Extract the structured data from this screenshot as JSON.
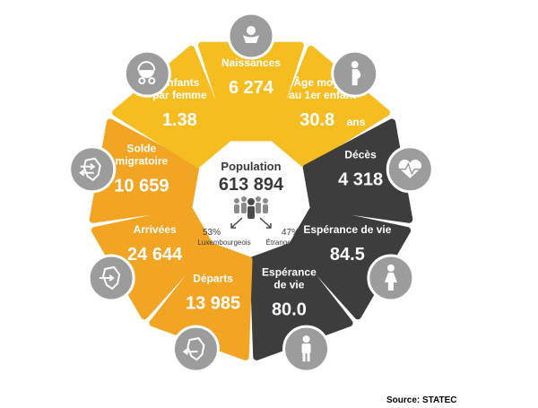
{
  "colors": {
    "yellow": "#f5bd1f",
    "orange": "#f2a423",
    "dark": "#3d3d3d",
    "icon_gray": "#9c9c9c"
  },
  "center": {
    "title": "Population",
    "value": "613 894",
    "left_pct": "53%",
    "left_label": "Luxembourgeois",
    "right_pct": "47%",
    "right_label": "Étrangers",
    "icon": "crowd-icon"
  },
  "segments": [
    {
      "id": "naissances",
      "label_lines": [
        "Naissances"
      ],
      "value": "6 274",
      "unit": "",
      "color": "yellow",
      "icon": "baby-icon"
    },
    {
      "id": "age-moyen",
      "label_lines": [
        "Âge moyen",
        "au 1er enfant"
      ],
      "value": "30.8",
      "unit": "ans",
      "color": "yellow",
      "icon": "pregnant-woman-icon"
    },
    {
      "id": "deces",
      "label_lines": [
        "Décès"
      ],
      "value": "4 318",
      "unit": "",
      "color": "dark",
      "icon": "heartbeat-icon"
    },
    {
      "id": "esperance-femmes",
      "label_lines": [
        "Espérance de vie"
      ],
      "value": "84.5",
      "unit": "",
      "color": "dark",
      "icon": "woman-icon"
    },
    {
      "id": "esperance-hommes",
      "label_lines": [
        "Espérance",
        "de vie"
      ],
      "value": "80.0",
      "unit": "",
      "color": "dark",
      "icon": "man-icon"
    },
    {
      "id": "departs",
      "label_lines": [
        "Départs"
      ],
      "value": "13 985",
      "unit": "",
      "color": "orange",
      "icon": "country-arrow-out-icon"
    },
    {
      "id": "arrivees",
      "label_lines": [
        "Arrivées"
      ],
      "value": "24 644",
      "unit": "",
      "color": "orange",
      "icon": "country-arrow-in-icon"
    },
    {
      "id": "solde-migratoire",
      "label_lines": [
        "Solde",
        "migratoire"
      ],
      "value": "10 659",
      "unit": "",
      "color": "orange",
      "icon": "country-two-arrows-icon"
    },
    {
      "id": "enfants-par-femme",
      "label_lines": [
        "Enfants",
        "par femme"
      ],
      "value": "1.38",
      "unit": "",
      "color": "yellow",
      "icon": "baby-carriage-icon"
    }
  ],
  "source": "Source: STATEC"
}
